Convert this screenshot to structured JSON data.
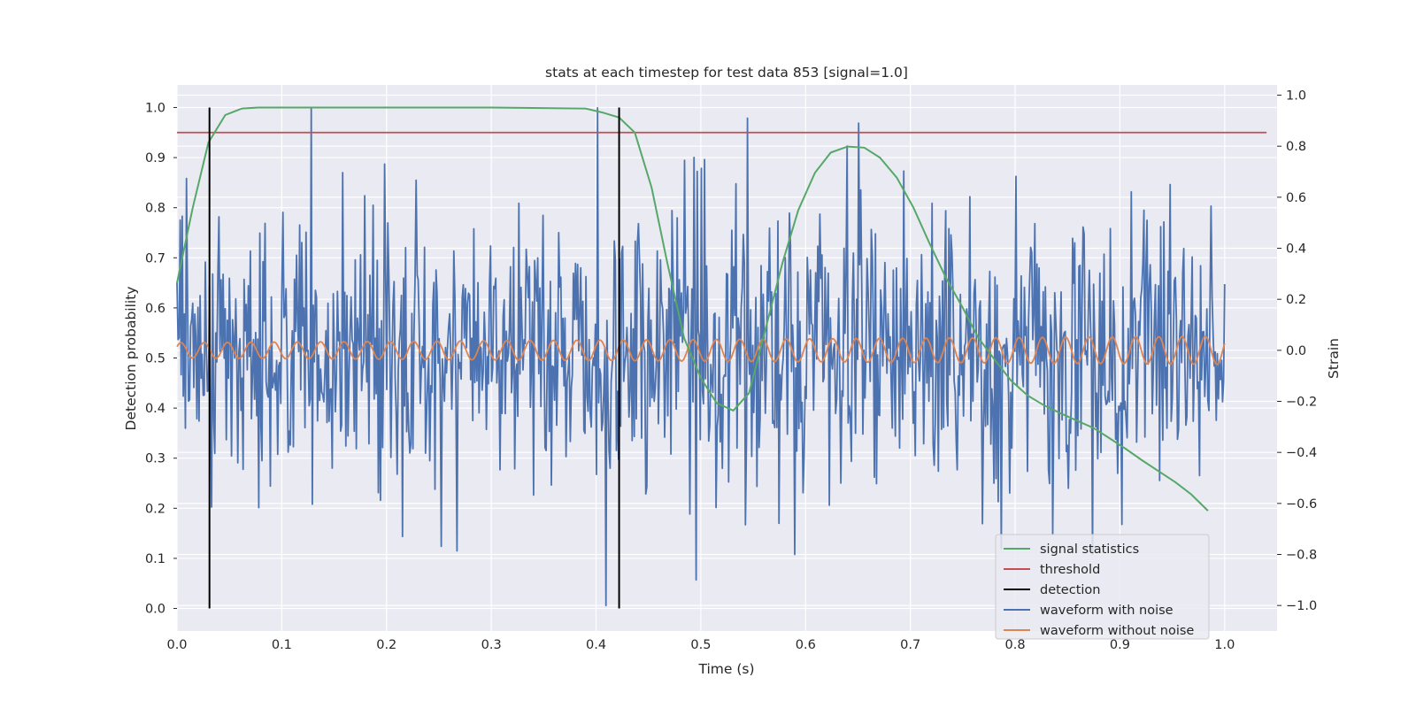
{
  "chart_data": {
    "type": "line",
    "title": "stats at each timestep for test data 853 [signal=1.0]",
    "xlabel": "Time (s)",
    "ylabel": "Detection probability",
    "ylabel_right": "Strain",
    "xlim": [
      0.0,
      1.05
    ],
    "ylim": [
      -0.045,
      1.045
    ],
    "ylim_right": [
      -1.1,
      1.04
    ],
    "x_ticks": [
      0.0,
      0.1,
      0.2,
      0.3,
      0.4,
      0.5,
      0.6,
      0.7,
      0.8,
      0.9,
      1.0
    ],
    "y_ticks": [
      0.0,
      0.1,
      0.2,
      0.3,
      0.4,
      0.5,
      0.6,
      0.7,
      0.8,
      0.9,
      1.0
    ],
    "y_ticks_right": [
      -1.0,
      -0.8,
      -0.6,
      -0.4,
      -0.2,
      0.0,
      0.2,
      0.4,
      0.6,
      0.8,
      1.0
    ],
    "grid": true,
    "legend_placement": "lower-right",
    "colors": {
      "plot_bg": "#eaeaf2",
      "grid": "#ffffff",
      "signal_statistics": "#55a868",
      "threshold": "#c44e52",
      "detection": "#000000",
      "waveform_with_noise": "#4c72b0",
      "waveform_without_noise": "#dd8452"
    },
    "series": [
      {
        "name": "signal statistics",
        "axis": "left",
        "x": [
          0.0,
          0.015,
          0.03,
          0.046,
          0.062,
          0.078,
          0.1,
          0.2,
          0.3,
          0.39,
          0.406,
          0.422,
          0.437,
          0.453,
          0.468,
          0.484,
          0.5,
          0.515,
          0.531,
          0.546,
          0.562,
          0.578,
          0.593,
          0.609,
          0.624,
          0.64,
          0.656,
          0.671,
          0.687,
          0.703,
          0.718,
          0.734,
          0.75,
          0.765,
          0.781,
          0.796,
          0.812,
          0.828,
          0.843,
          0.859,
          0.875,
          0.89,
          0.906,
          0.921,
          0.937,
          0.953,
          0.968,
          0.984
        ],
        "y": [
          0.65,
          0.8,
          0.93,
          0.985,
          0.998,
          1.0,
          1.0,
          1.0,
          1.0,
          0.998,
          0.99,
          0.98,
          0.95,
          0.84,
          0.69,
          0.54,
          0.46,
          0.41,
          0.395,
          0.43,
          0.56,
          0.69,
          0.795,
          0.87,
          0.91,
          0.922,
          0.92,
          0.9,
          0.86,
          0.8,
          0.73,
          0.66,
          0.6,
          0.54,
          0.495,
          0.455,
          0.425,
          0.405,
          0.39,
          0.375,
          0.36,
          0.34,
          0.318,
          0.296,
          0.274,
          0.252,
          0.228,
          0.195
        ]
      },
      {
        "name": "threshold",
        "axis": "left",
        "x": [
          0.0,
          1.04
        ],
        "y": [
          0.95,
          0.95
        ]
      },
      {
        "name": "detection",
        "axis": "left",
        "x": [
          0.031,
          0.422
        ],
        "y_range": [
          0.0,
          1.0
        ]
      },
      {
        "name": "waveform with noise",
        "axis": "right",
        "generated_points": 1000,
        "x_range": [
          0.0,
          1.0
        ],
        "amplitude_range": [
          -1.0,
          1.0
        ],
        "peaks": [
          {
            "x": 0.128,
            "y": 0.95
          },
          {
            "x": 0.401,
            "y": 0.95
          },
          {
            "x": 0.409,
            "y": -1.0
          },
          {
            "x": 0.545,
            "y": 0.91
          },
          {
            "x": 0.651,
            "y": 0.89
          },
          {
            "x": 0.836,
            "y": -0.72
          },
          {
            "x": 0.495,
            "y": -0.9
          }
        ]
      },
      {
        "name": "waveform without noise",
        "axis": "right",
        "x_range": [
          0.0,
          1.0
        ],
        "amplitude_start": 0.03,
        "amplitude_end": 0.055,
        "cycles": 45
      }
    ]
  }
}
